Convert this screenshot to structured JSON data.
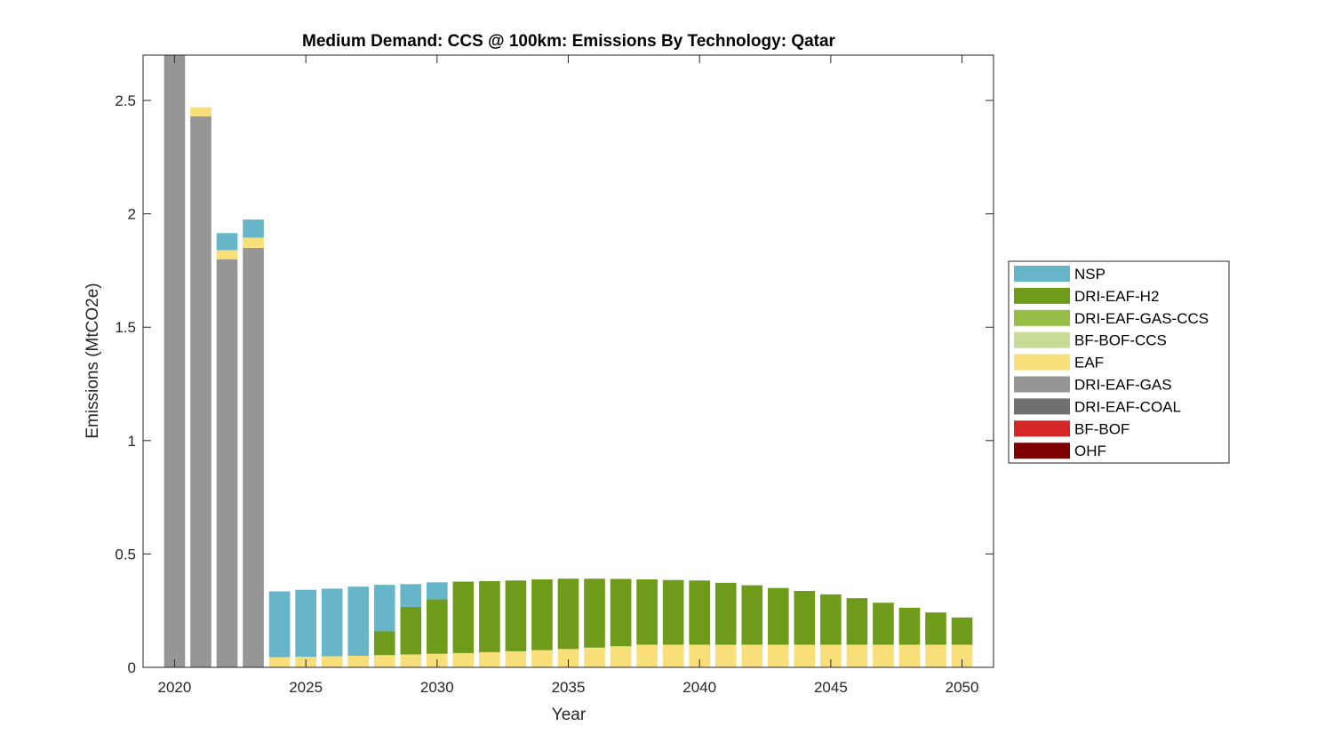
{
  "chart_data": {
    "type": "bar",
    "stacked": true,
    "title": "Medium Demand: CCS @ 100km: Emissions By Technology: Qatar",
    "xlabel": "Year",
    "ylabel": "Emissions (MtCO2e)",
    "xlim": [
      2018.8,
      2051.2
    ],
    "ylim": [
      0,
      2.7
    ],
    "xticks": [
      2020,
      2025,
      2030,
      2035,
      2040,
      2045,
      2050
    ],
    "yticks": [
      0,
      0.5,
      1,
      1.5,
      2,
      2.5
    ],
    "ytick_labels": [
      "0",
      "0.5",
      "1",
      "1.5",
      "2",
      "2.5"
    ],
    "grid": false,
    "legend_position": "outside-right",
    "x": [
      2020,
      2021,
      2022,
      2023,
      2024,
      2025,
      2026,
      2027,
      2028,
      2029,
      2030,
      2031,
      2032,
      2033,
      2034,
      2035,
      2036,
      2037,
      2038,
      2039,
      2040,
      2041,
      2042,
      2043,
      2044,
      2045,
      2046,
      2047,
      2048,
      2049,
      2050
    ],
    "series": [
      {
        "name": "OHF",
        "color": "#7F0000",
        "values": [
          0,
          0,
          0,
          0,
          0,
          0,
          0,
          0,
          0,
          0,
          0,
          0,
          0,
          0,
          0,
          0,
          0,
          0,
          0,
          0,
          0,
          0,
          0,
          0,
          0,
          0,
          0,
          0,
          0,
          0,
          0
        ]
      },
      {
        "name": "BF-BOF",
        "color": "#D62728",
        "values": [
          0,
          0,
          0,
          0,
          0,
          0,
          0,
          0,
          0,
          0,
          0,
          0,
          0,
          0,
          0,
          0,
          0,
          0,
          0,
          0,
          0,
          0,
          0,
          0,
          0,
          0,
          0,
          0,
          0,
          0,
          0
        ]
      },
      {
        "name": "DRI-EAF-COAL",
        "color": "#707070",
        "values": [
          0,
          0,
          0,
          0,
          0,
          0,
          0,
          0,
          0,
          0,
          0,
          0,
          0,
          0,
          0,
          0,
          0,
          0,
          0,
          0,
          0,
          0,
          0,
          0,
          0,
          0,
          0,
          0,
          0,
          0,
          0
        ]
      },
      {
        "name": "DRI-EAF-GAS",
        "color": "#969696",
        "values": [
          2.72,
          2.43,
          1.8,
          1.85,
          0,
          0,
          0,
          0,
          0,
          0,
          0,
          0,
          0,
          0,
          0,
          0,
          0,
          0,
          0,
          0,
          0,
          0,
          0,
          0,
          0,
          0,
          0,
          0,
          0,
          0,
          0
        ]
      },
      {
        "name": "EAF",
        "color": "#F8DF7A",
        "values": [
          0,
          0.04,
          0.04,
          0.045,
          0.045,
          0.047,
          0.049,
          0.051,
          0.054,
          0.057,
          0.06,
          0.063,
          0.067,
          0.071,
          0.076,
          0.081,
          0.087,
          0.093,
          0.1,
          0.1,
          0.1,
          0.1,
          0.1,
          0.1,
          0.1,
          0.1,
          0.1,
          0.1,
          0.1,
          0.1,
          0.1
        ]
      },
      {
        "name": "BF-BOF-CCS",
        "color": "#C8DC96",
        "values": [
          0,
          0,
          0,
          0,
          0,
          0,
          0,
          0,
          0,
          0,
          0,
          0,
          0,
          0,
          0,
          0,
          0,
          0,
          0,
          0,
          0,
          0,
          0,
          0,
          0,
          0,
          0,
          0,
          0,
          0,
          0
        ]
      },
      {
        "name": "DRI-EAF-GAS-CCS",
        "color": "#96BE46",
        "values": [
          0,
          0,
          0,
          0,
          0,
          0,
          0,
          0,
          0,
          0,
          0,
          0,
          0,
          0,
          0,
          0,
          0,
          0,
          0,
          0,
          0,
          0,
          0,
          0,
          0,
          0,
          0,
          0,
          0,
          0,
          0
        ]
      },
      {
        "name": "DRI-EAF-H2",
        "color": "#6E9B19",
        "values": [
          0,
          0,
          0,
          0,
          0,
          0,
          0,
          0,
          0.105,
          0.21,
          0.24,
          0.315,
          0.313,
          0.312,
          0.312,
          0.31,
          0.304,
          0.297,
          0.288,
          0.285,
          0.283,
          0.273,
          0.262,
          0.25,
          0.237,
          0.222,
          0.205,
          0.185,
          0.163,
          0.142,
          0.12
        ]
      },
      {
        "name": "NSP",
        "color": "#66B5C8",
        "values": [
          0,
          0,
          0.075,
          0.08,
          0.29,
          0.295,
          0.298,
          0.305,
          0.205,
          0.1,
          0.075,
          0,
          0,
          0,
          0,
          0,
          0,
          0,
          0,
          0,
          0,
          0,
          0,
          0,
          0,
          0,
          0,
          0,
          0,
          0,
          0
        ]
      }
    ],
    "legend_order": [
      "NSP",
      "DRI-EAF-H2",
      "DRI-EAF-GAS-CCS",
      "BF-BOF-CCS",
      "EAF",
      "DRI-EAF-GAS",
      "DRI-EAF-COAL",
      "BF-BOF",
      "OHF"
    ]
  }
}
